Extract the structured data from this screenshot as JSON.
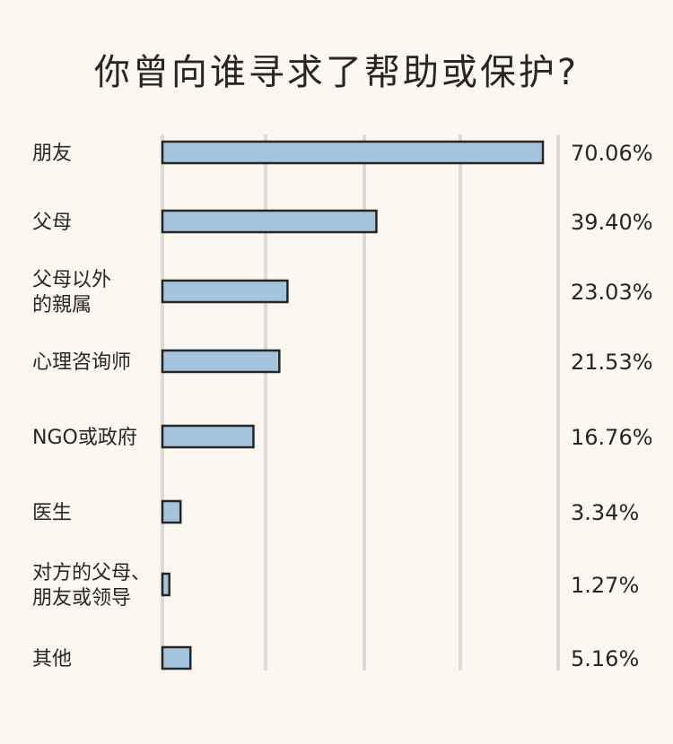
{
  "chart_data": {
    "type": "bar",
    "orientation": "horizontal",
    "title": "你曾向谁寻求了帮助或保护?",
    "categories": [
      [
        "朋友"
      ],
      [
        "父母"
      ],
      [
        "父母以外",
        "的親属"
      ],
      [
        "心理咨询师"
      ],
      [
        "NGO或政府"
      ],
      [
        "医生"
      ],
      [
        "对方的父母、",
        "朋友或领导"
      ],
      [
        "其他"
      ]
    ],
    "values": [
      70.06,
      39.4,
      23.03,
      21.53,
      16.76,
      3.34,
      1.27,
      5.16
    ],
    "value_labels": [
      "70.06%",
      "39.40%",
      "23.03%",
      "21.53%",
      "16.76%",
      "3.34%",
      "1.27%",
      "5.16%"
    ],
    "xlim": [
      0,
      70.06
    ],
    "grid": true,
    "colors": {
      "bar_fill": "#a4c3dc",
      "bar_stroke": "#2a2522",
      "grid": "#dedad6",
      "text": "#2b2420"
    }
  }
}
